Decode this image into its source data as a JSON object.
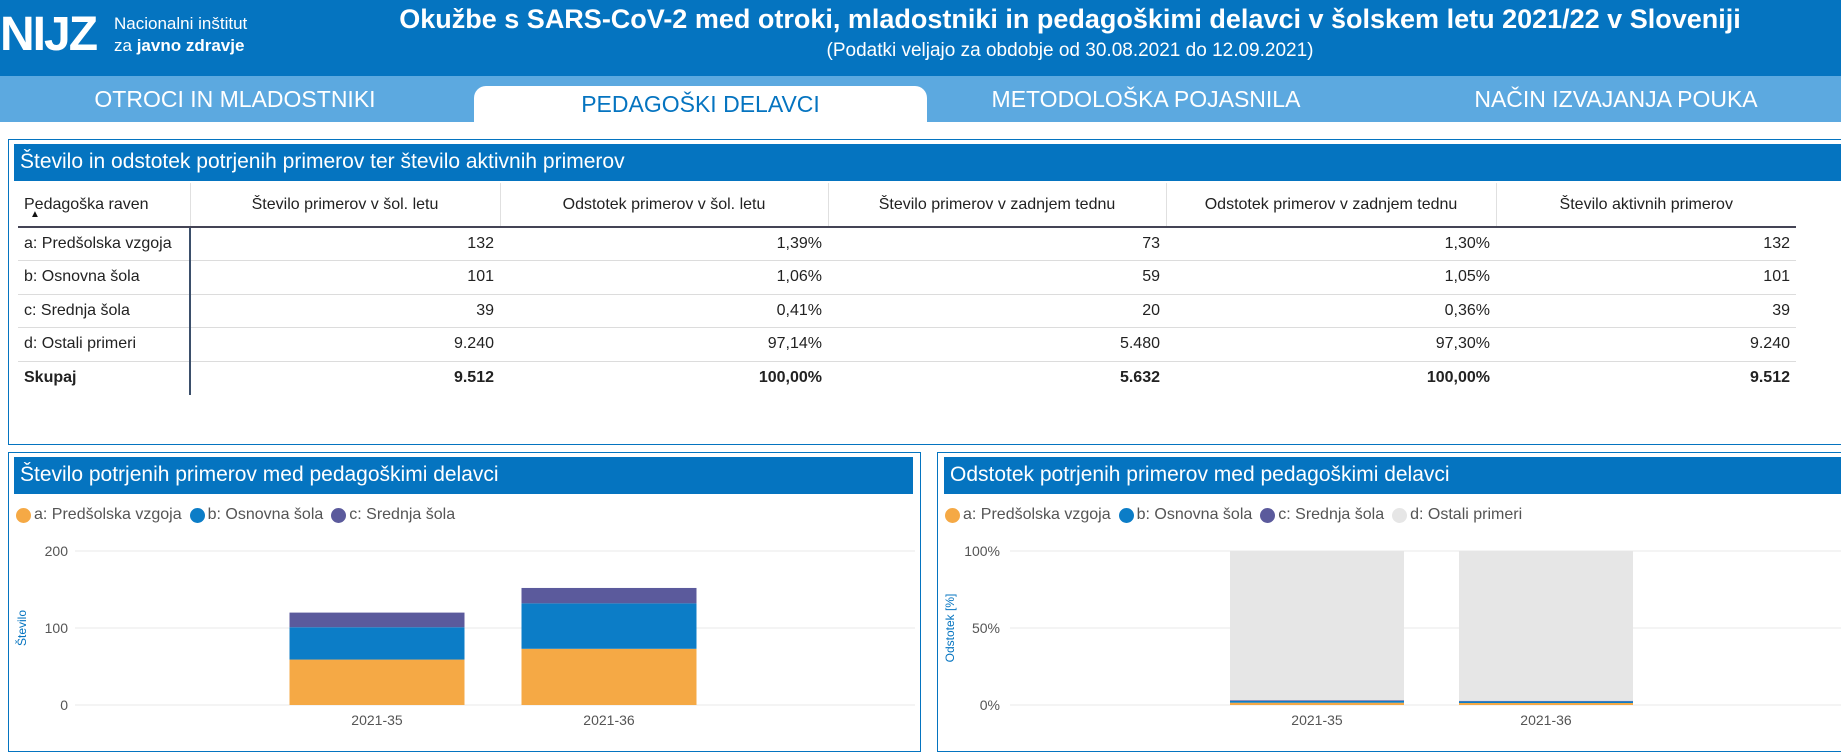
{
  "header": {
    "logo_mark": "NIJZ",
    "logo_line1": "Nacionalni inštitut",
    "logo_line2_prefix": "za ",
    "logo_line2_bold": "javno zdravje",
    "title": "Okužbe s SARS-CoV-2 med otroki, mladostniki in pedagoškimi delavci v šolskem letu 2021/22 v Sloveniji",
    "subtitle": "(Podatki veljajo za obdobje od 30.08.2021 do 12.09.2021)"
  },
  "tabs": [
    {
      "label": "OTROCI IN MLADOSTNIKI"
    },
    {
      "label": "PEDAGOŠKI DELAVCI"
    },
    {
      "label": "METODOLOŠKA POJASNILA"
    },
    {
      "label": "NAČIN IZVAJANJA POUKA"
    }
  ],
  "table_panel": {
    "title": "Število in odstotek potrjenih primerov ter število aktivnih primerov",
    "columns": [
      "Pedagoška raven",
      "Število primerov v šol. letu",
      "Odstotek primerov v šol. letu",
      "Število primerov v zadnjem tednu",
      "Odstotek primerov v zadnjem tednu",
      "Število aktivnih primerov"
    ],
    "sort_indicator": "▲",
    "rows": [
      [
        "a: Predšolska vzgoja",
        "132",
        "1,39%",
        "73",
        "1,30%",
        "132"
      ],
      [
        "b: Osnovna šola",
        "101",
        "1,06%",
        "59",
        "1,05%",
        "101"
      ],
      [
        "c: Srednja šola",
        "39",
        "0,41%",
        "20",
        "0,36%",
        "39"
      ],
      [
        "d: Ostali primeri",
        "9.240",
        "97,14%",
        "5.480",
        "97,30%",
        "9.240"
      ]
    ],
    "total": [
      "Skupaj",
      "9.512",
      "100,00%",
      "5.632",
      "100,00%",
      "9.512"
    ]
  },
  "colors": {
    "brand": "#0574c0",
    "predsolska": "#f5a945",
    "osnovna": "#0c7dc7",
    "srednja": "#5b5a9c",
    "ostali": "#e6e6e6"
  },
  "chart_data": [
    {
      "type": "bar",
      "stacked": true,
      "title": "Število potrjenih primerov med pedagoškimi delavci",
      "legend": [
        "a: Predšolska vzgoja",
        "b: Osnovna šola",
        "c: Srednja šola"
      ],
      "categories": [
        "2021-35",
        "2021-36"
      ],
      "series": [
        {
          "name": "a: Predšolska vzgoja",
          "values": [
            59,
            73
          ]
        },
        {
          "name": "b: Osnovna šola",
          "values": [
            42,
            59
          ]
        },
        {
          "name": "c: Srednja šola",
          "values": [
            19,
            20
          ]
        }
      ],
      "ylabel": "Število",
      "yticks": [
        "0",
        "100",
        "200"
      ],
      "ylim": [
        0,
        200
      ]
    },
    {
      "type": "bar",
      "stacked": true,
      "title": "Odstotek potrjenih primerov med pedagoškimi delavci",
      "legend": [
        "a: Predšolska vzgoja",
        "b: Osnovna šola",
        "c: Srednja šola",
        "d: Ostali primeri"
      ],
      "categories": [
        "2021-35",
        "2021-36"
      ],
      "series": [
        {
          "name": "a: Predšolska vzgoja",
          "values": [
            1.5,
            1.3
          ]
        },
        {
          "name": "b: Osnovna šola",
          "values": [
            1.1,
            1.05
          ]
        },
        {
          "name": "c: Srednja šola",
          "values": [
            0.5,
            0.36
          ]
        },
        {
          "name": "d: Ostali primeri",
          "values": [
            96.9,
            97.29
          ]
        }
      ],
      "ylabel": "Odstotek [%]",
      "yticks": [
        "0%",
        "50%",
        "100%"
      ],
      "ylim": [
        0,
        100
      ]
    }
  ]
}
